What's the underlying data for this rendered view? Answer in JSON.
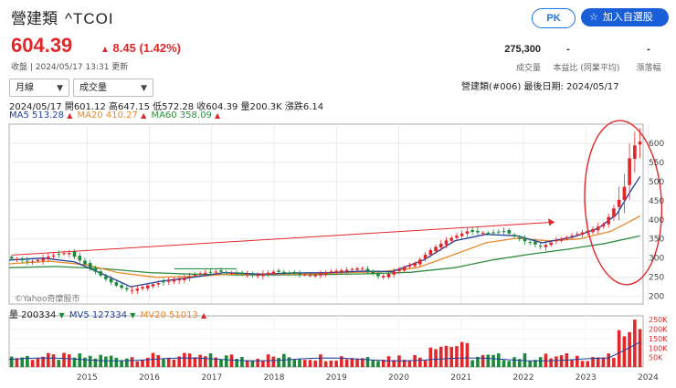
{
  "header": {
    "name": "營建類",
    "symbol": "^TCOI",
    "pk_label": "PK",
    "watch_label": "加入自選股"
  },
  "quote": {
    "price": "604.39",
    "change": "8.45 (1.42%)",
    "closed_time": "收盤 | 2024/05/17 13:31 更新"
  },
  "stats": [
    {
      "value": "275,300",
      "label": "成交量"
    },
    {
      "value": "-",
      "label": "本益比 (同業平均)"
    },
    {
      "value": "-",
      "label": "漲落幅"
    }
  ],
  "controls": {
    "period": "月線",
    "indicator": "成交量"
  },
  "sector_info": "營建類(#006)   最後日期: 2024/05/17",
  "ohlc_line": "2024/05/17 開601.12 高647.15 低572.28 收604.39 量200.3K 漲跌6.14",
  "ma": {
    "ma5": "MA5 513.28",
    "ma20": "MA20 410.27",
    "ma60": "MA60 358.09"
  },
  "vol_legend": {
    "vol": "量 200334",
    "mv5": "MV5 127334",
    "mv20": "MV20 51013"
  },
  "watermark": "©Yahoo奇摩股市",
  "colors": {
    "up": "#e0282b",
    "down": "#1a8a3a",
    "ma5": "#1f3f99",
    "ma20": "#e8892c",
    "ma60": "#2e8b3f",
    "accent": "#1a5fd7"
  },
  "chart_data": {
    "type": "candlestick",
    "x_tick_labels": [
      "2015",
      "2016",
      "2017",
      "2018",
      "2019",
      "2020",
      "2021",
      "2022",
      "2023",
      "2024"
    ],
    "y_tick_labels": [
      "600",
      "550",
      "500",
      "450",
      "400",
      "350",
      "300",
      "250",
      "200"
    ],
    "ylim": [
      180,
      650
    ],
    "volume_tick_labels": [
      "250K",
      "200K",
      "150K",
      "100K",
      "50K"
    ],
    "volume_ylim": [
      0,
      270000
    ],
    "close_path": [
      [
        2014.25,
        300
      ],
      [
        2014.6,
        290
      ],
      [
        2014.9,
        305
      ],
      [
        2015.2,
        315
      ],
      [
        2015.5,
        280
      ],
      [
        2015.8,
        245
      ],
      [
        2016.0,
        225
      ],
      [
        2016.2,
        215
      ],
      [
        2016.5,
        230
      ],
      [
        2016.8,
        240
      ],
      [
        2017.0,
        245
      ],
      [
        2017.3,
        260
      ],
      [
        2017.6,
        265
      ],
      [
        2017.9,
        260
      ],
      [
        2018.2,
        255
      ],
      [
        2018.5,
        265
      ],
      [
        2018.8,
        260
      ],
      [
        2019.1,
        255
      ],
      [
        2019.4,
        265
      ],
      [
        2019.7,
        270
      ],
      [
        2019.9,
        275
      ],
      [
        2020.2,
        250
      ],
      [
        2020.5,
        270
      ],
      [
        2020.8,
        290
      ],
      [
        2021.0,
        320
      ],
      [
        2021.3,
        350
      ],
      [
        2021.6,
        370
      ],
      [
        2021.9,
        365
      ],
      [
        2022.2,
        370
      ],
      [
        2022.5,
        345
      ],
      [
        2022.8,
        330
      ],
      [
        2023.0,
        345
      ],
      [
        2023.3,
        360
      ],
      [
        2023.6,
        375
      ],
      [
        2023.8,
        390
      ],
      [
        2023.95,
        430
      ],
      [
        2024.1,
        470
      ],
      [
        2024.2,
        560
      ],
      [
        2024.3,
        600
      ],
      [
        2024.37,
        604.39
      ]
    ],
    "ma5_path": [
      [
        2014.25,
        295
      ],
      [
        2014.8,
        300
      ],
      [
        2015.3,
        290
      ],
      [
        2015.8,
        255
      ],
      [
        2016.2,
        225
      ],
      [
        2016.7,
        240
      ],
      [
        2017.2,
        250
      ],
      [
        2017.7,
        262
      ],
      [
        2018.3,
        258
      ],
      [
        2018.8,
        261
      ],
      [
        2019.4,
        262
      ],
      [
        2019.9,
        266
      ],
      [
        2020.4,
        265
      ],
      [
        2020.9,
        295
      ],
      [
        2021.4,
        345
      ],
      [
        2021.9,
        362
      ],
      [
        2022.4,
        358
      ],
      [
        2022.8,
        340
      ],
      [
        2023.3,
        355
      ],
      [
        2023.7,
        378
      ],
      [
        2024.0,
        415
      ],
      [
        2024.2,
        470
      ],
      [
        2024.37,
        513.28
      ]
    ],
    "ma20_path": [
      [
        2014.25,
        285
      ],
      [
        2014.9,
        292
      ],
      [
        2015.5,
        282
      ],
      [
        2016.0,
        262
      ],
      [
        2016.6,
        250
      ],
      [
        2017.2,
        252
      ],
      [
        2017.8,
        258
      ],
      [
        2018.4,
        258
      ],
      [
        2019.0,
        258
      ],
      [
        2019.6,
        262
      ],
      [
        2020.2,
        264
      ],
      [
        2020.8,
        275
      ],
      [
        2021.4,
        310
      ],
      [
        2021.9,
        340
      ],
      [
        2022.4,
        352
      ],
      [
        2022.9,
        345
      ],
      [
        2023.4,
        350
      ],
      [
        2023.9,
        370
      ],
      [
        2024.2,
        395
      ],
      [
        2024.37,
        410.27
      ]
    ],
    "ma60_path": [
      [
        2014.25,
        275
      ],
      [
        2015.0,
        278
      ],
      [
        2015.8,
        272
      ],
      [
        2016.5,
        262
      ],
      [
        2017.2,
        258
      ],
      [
        2017.9,
        256
      ],
      [
        2018.6,
        256
      ],
      [
        2019.3,
        257
      ],
      [
        2020.0,
        259
      ],
      [
        2020.7,
        263
      ],
      [
        2021.4,
        275
      ],
      [
        2022.0,
        295
      ],
      [
        2022.6,
        310
      ],
      [
        2023.2,
        323
      ],
      [
        2023.8,
        338
      ],
      [
        2024.37,
        358.09
      ]
    ],
    "trendline": [
      [
        2014.3,
        308
      ],
      [
        2023.0,
        394
      ]
    ],
    "annotation": "red ellipse around 2024 breakout"
  }
}
